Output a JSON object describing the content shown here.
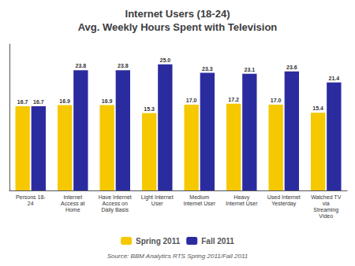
{
  "chart_data": {
    "type": "bar",
    "title": "Internet Users (18-24)\nAvg. Weekly Hours Spent with Television",
    "categories": [
      "Persons 18-\n24",
      "Internet\nAccess at\nHome",
      "Have Internet\nAccess on\nDaily Basis",
      "Light Internet\nUser",
      "Medium\nInternet User",
      "Heavy\nInternet User",
      "Used Internet\nYesterday",
      "Watched TV\nvia\nStreaming\nVideo"
    ],
    "series": [
      {
        "name": "Spring 2011",
        "color": "#F5C800",
        "values": [
          16.7,
          16.9,
          16.9,
          15.3,
          17.0,
          17.2,
          17.0,
          15.4
        ],
        "value_labels": [
          "16.7",
          "16.9",
          "16.9",
          "15.3",
          "17.0",
          "17.2",
          "17.0",
          "15.4"
        ]
      },
      {
        "name": "Fall 2011",
        "color": "#2B2BA0",
        "values": [
          16.7,
          23.8,
          23.8,
          25.0,
          23.3,
          23.1,
          23.6,
          21.4
        ],
        "value_labels": [
          "16.7",
          "23.8",
          "23.8",
          "25.0",
          "23.3",
          "23.1",
          "23.6",
          "21.4"
        ]
      }
    ],
    "ylim": [
      0,
      29
    ],
    "grid": false,
    "legend": "bottom",
    "data_labels": true,
    "tick_labels": "x",
    "annotations": [
      "Source: BBM Analytics RTS Spring 2011/Fall 2011"
    ]
  }
}
